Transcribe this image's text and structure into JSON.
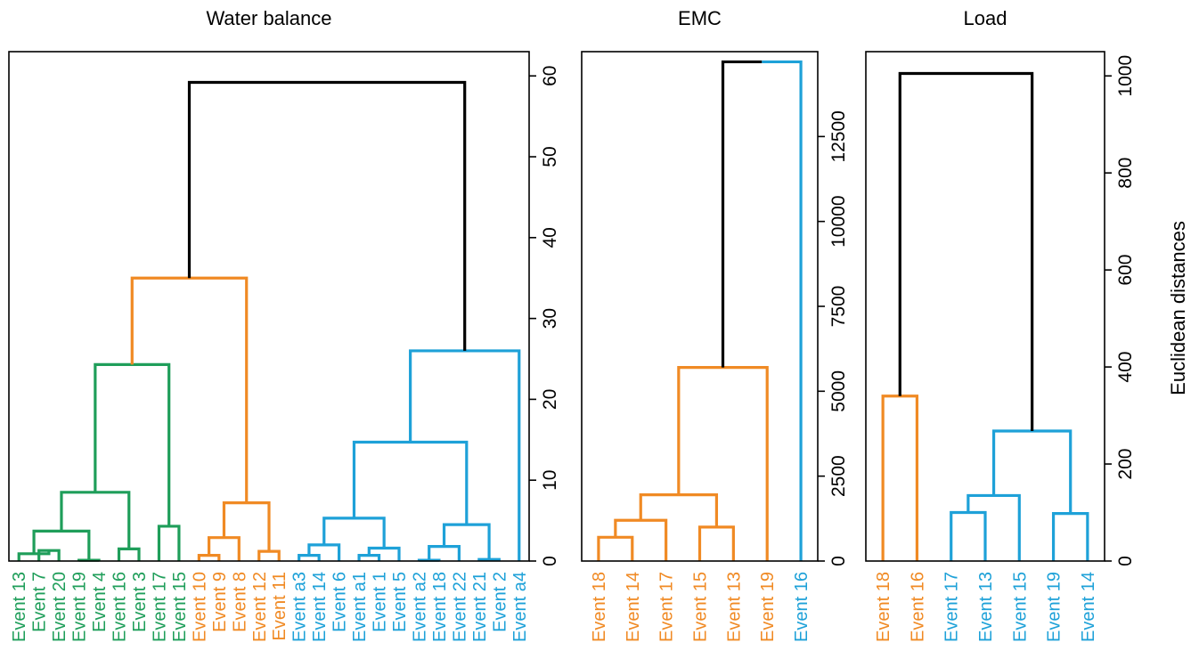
{
  "colors": {
    "green": "#1f9e5a",
    "orange": "#f08a24",
    "blue": "#1ea1d8",
    "black": "#000000",
    "axis": "#000000"
  },
  "shared_ylabel": "Euclidean distances",
  "chart_data": [
    {
      "type": "dendrogram",
      "title": "Water balance",
      "ylim": [
        0,
        63
      ],
      "yticks": [
        0,
        10,
        20,
        30,
        40,
        50,
        60
      ],
      "ytick_labels": [
        "0",
        "10",
        "20",
        "30",
        "40",
        "50",
        "60"
      ],
      "y_axis_side": "right",
      "leaves": [
        {
          "label": "Event 13",
          "color": "green"
        },
        {
          "label": "Event 7",
          "color": "green"
        },
        {
          "label": "Event 20",
          "color": "green"
        },
        {
          "label": "Event 19",
          "color": "green"
        },
        {
          "label": "Event 4",
          "color": "green"
        },
        {
          "label": "Event 16",
          "color": "green"
        },
        {
          "label": "Event 3",
          "color": "green"
        },
        {
          "label": "Event 17",
          "color": "green"
        },
        {
          "label": "Event 15",
          "color": "green"
        },
        {
          "label": "Event 10",
          "color": "orange"
        },
        {
          "label": "Event 9",
          "color": "orange"
        },
        {
          "label": "Event 8",
          "color": "orange"
        },
        {
          "label": "Event 12",
          "color": "orange"
        },
        {
          "label": "Event 11",
          "color": "orange"
        },
        {
          "label": "Event a3",
          "color": "blue"
        },
        {
          "label": "Event 14",
          "color": "blue"
        },
        {
          "label": "Event 6",
          "color": "blue"
        },
        {
          "label": "Event a1",
          "color": "blue"
        },
        {
          "label": "Event 1",
          "color": "blue"
        },
        {
          "label": "Event 5",
          "color": "blue"
        },
        {
          "label": "Event a2",
          "color": "blue"
        },
        {
          "label": "Event 18",
          "color": "blue"
        },
        {
          "label": "Event 22",
          "color": "blue"
        },
        {
          "label": "Event 21",
          "color": "blue"
        },
        {
          "label": "Event 2",
          "color": "blue"
        },
        {
          "label": "Event a4",
          "color": "blue"
        }
      ],
      "merges": [
        {
          "l": 1,
          "r": 2,
          "h": 1.3,
          "color": "green"
        },
        {
          "l": 0,
          "r": 26,
          "h": 0.9,
          "color": "green"
        },
        {
          "l": 3,
          "r": 4,
          "h": 0.1,
          "color": "green"
        },
        {
          "l": 27,
          "r": 28,
          "h": 3.7,
          "color": "green"
        },
        {
          "l": 5,
          "r": 6,
          "h": 1.5,
          "color": "green"
        },
        {
          "l": 29,
          "r": 30,
          "h": 8.5,
          "color": "green"
        },
        {
          "l": 7,
          "r": 8,
          "h": 4.3,
          "color": "green"
        },
        {
          "l": 31,
          "r": 32,
          "h": 24.3,
          "color": "green"
        },
        {
          "l": 9,
          "r": 10,
          "h": 0.7,
          "color": "orange"
        },
        {
          "l": 11,
          "r": 34,
          "h": 2.9,
          "color": "orange"
        },
        {
          "l": 12,
          "r": 13,
          "h": 1.2,
          "color": "orange"
        },
        {
          "l": 35,
          "r": 36,
          "h": 7.2,
          "color": "orange"
        },
        {
          "l": 33,
          "r": 37,
          "h": 35.0,
          "color": "orange"
        },
        {
          "l": 14,
          "r": 15,
          "h": 0.7,
          "color": "blue"
        },
        {
          "l": 16,
          "r": 39,
          "h": 2.0,
          "color": "blue"
        },
        {
          "l": 17,
          "r": 18,
          "h": 0.7,
          "color": "blue"
        },
        {
          "l": 19,
          "r": 41,
          "h": 1.6,
          "color": "blue"
        },
        {
          "l": 40,
          "r": 42,
          "h": 5.3,
          "color": "blue"
        },
        {
          "l": 20,
          "r": 21,
          "h": 0.1,
          "color": "blue"
        },
        {
          "l": 22,
          "r": 44,
          "h": 1.8,
          "color": "blue"
        },
        {
          "l": 23,
          "r": 24,
          "h": 0.2,
          "color": "blue"
        },
        {
          "l": 45,
          "r": 46,
          "h": 4.5,
          "color": "blue"
        },
        {
          "l": 43,
          "r": 47,
          "h": 14.7,
          "color": "blue"
        },
        {
          "l": 25,
          "r": 48,
          "h": 26.0,
          "color": "blue"
        },
        {
          "l": 38,
          "r": 49,
          "h": 59.2,
          "color": "black"
        }
      ]
    },
    {
      "type": "dendrogram",
      "title": "EMC",
      "ylim": [
        0,
        15000
      ],
      "yticks": [
        0,
        2500,
        5000,
        7500,
        10000,
        12500
      ],
      "ytick_labels": [
        "0",
        "2500",
        "5000",
        "7500",
        "10000",
        "12500"
      ],
      "y_axis_side": "right",
      "leaves": [
        {
          "label": "Event 18",
          "color": "orange"
        },
        {
          "label": "Event 14",
          "color": "orange"
        },
        {
          "label": "Event 17",
          "color": "orange"
        },
        {
          "label": "Event 15",
          "color": "orange"
        },
        {
          "label": "Event 13",
          "color": "orange"
        },
        {
          "label": "Event 19",
          "color": "orange"
        },
        {
          "label": "Event 16",
          "color": "blue"
        }
      ],
      "merges": [
        {
          "l": 0,
          "r": 1,
          "h": 700,
          "color": "orange"
        },
        {
          "l": 7,
          "r": 2,
          "h": 1200,
          "color": "orange"
        },
        {
          "l": 3,
          "r": 4,
          "h": 1000,
          "color": "orange"
        },
        {
          "l": 8,
          "r": 9,
          "h": 1950,
          "color": "orange"
        },
        {
          "l": 10,
          "r": 5,
          "h": 5700,
          "color": "orange"
        },
        {
          "l": 11,
          "r": 6,
          "h": 14700,
          "color": "black",
          "right_color": "blue"
        }
      ]
    },
    {
      "type": "dendrogram",
      "title": "Load",
      "ylim": [
        0,
        1050
      ],
      "yticks": [
        0,
        200,
        400,
        600,
        800,
        1000
      ],
      "ytick_labels": [
        "0",
        "200",
        "400",
        "600",
        "800",
        "1000"
      ],
      "y_axis_side": "right",
      "leaves": [
        {
          "label": "Event 18",
          "color": "orange"
        },
        {
          "label": "Event 16",
          "color": "orange"
        },
        {
          "label": "Event 17",
          "color": "blue"
        },
        {
          "label": "Event 13",
          "color": "blue"
        },
        {
          "label": "Event 15",
          "color": "blue"
        },
        {
          "label": "Event 19",
          "color": "blue"
        },
        {
          "label": "Event 14",
          "color": "blue"
        }
      ],
      "merges": [
        {
          "l": 0,
          "r": 1,
          "h": 340,
          "color": "orange"
        },
        {
          "l": 2,
          "r": 3,
          "h": 100,
          "color": "blue"
        },
        {
          "l": 8,
          "r": 4,
          "h": 135,
          "color": "blue"
        },
        {
          "l": 5,
          "r": 6,
          "h": 98,
          "color": "blue"
        },
        {
          "l": 9,
          "r": 10,
          "h": 268,
          "color": "blue"
        },
        {
          "l": 7,
          "r": 11,
          "h": 1005,
          "color": "black"
        }
      ]
    }
  ]
}
